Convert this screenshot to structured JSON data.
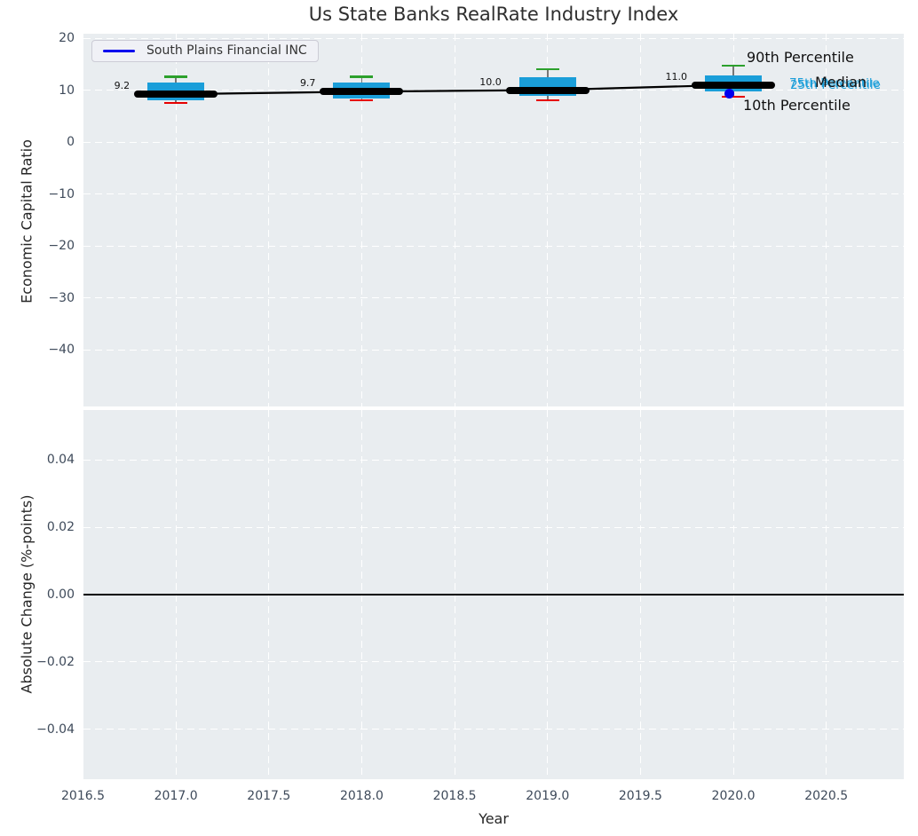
{
  "figure": {
    "title": "Us State Banks RealRate Industry Index"
  },
  "legend": {
    "label": "South Plains Financial INC"
  },
  "chart_data": {
    "type": "boxplot",
    "title": "Us State Banks RealRate Industry Index",
    "x": {
      "label": "Year",
      "tick_labels": [
        "2016.5",
        "2017.0",
        "2017.5",
        "2018.0",
        "2018.5",
        "2019.0",
        "2019.5",
        "2020.0",
        "2020.5"
      ],
      "tick_values": [
        2016.5,
        2017.0,
        2017.5,
        2018.0,
        2018.5,
        2019.0,
        2019.5,
        2020.0,
        2020.5
      ],
      "range": [
        2016.5,
        2020.92
      ]
    },
    "top_panel": {
      "ylabel": "Economic Capital Ratio",
      "y_tick_labels": [
        "20",
        "10",
        "0",
        "−10",
        "−20",
        "−30",
        "−40"
      ],
      "y_tick_values": [
        20,
        10,
        0,
        -10,
        -20,
        -30,
        -40
      ],
      "ylim": [
        -50.9,
        20.9
      ],
      "grid": true,
      "legend_position": "upper left",
      "boxes": [
        {
          "year": 2017,
          "median_label": "9.2",
          "median": 9.2,
          "q1": 8.0,
          "q3": 11.5,
          "p10": 7.5,
          "p90": 12.6
        },
        {
          "year": 2018,
          "median_label": "9.7",
          "median": 9.7,
          "q1": 8.4,
          "q3": 11.4,
          "p10": 8.0,
          "p90": 12.6
        },
        {
          "year": 2019,
          "median_label": "10.0",
          "median": 10.0,
          "q1": 8.9,
          "q3": 12.5,
          "p10": 8.0,
          "p90": 14.0
        },
        {
          "year": 2020,
          "median_label": "11.0",
          "median": 11.0,
          "q1": 9.8,
          "q3": 12.8,
          "p10": 8.7,
          "p90": 14.7
        }
      ],
      "median_line": {
        "x": [
          2017,
          2018,
          2019,
          2020
        ],
        "y": [
          9.2,
          9.7,
          10.0,
          11.0
        ]
      },
      "company_series": {
        "name": "South Plains Financial INC",
        "points": [
          {
            "x": 2020,
            "y": 9.4
          }
        ]
      },
      "percentile_labels": {
        "p90": "90th Percentile",
        "median": "Median",
        "p75": "75th Percentile",
        "p25": "25th Percentile",
        "p10": "10th Percentile"
      }
    },
    "bottom_panel": {
      "ylabel": "Absolute Change (%-points)",
      "y_tick_labels": [
        "0.04",
        "0.02",
        "0.00",
        "−0.02",
        "−0.04"
      ],
      "y_tick_values": [
        0.04,
        0.02,
        0,
        -0.02,
        -0.04
      ],
      "zero_line_y": 0,
      "series": []
    },
    "colors": {
      "box_fill": "#1a9ed9",
      "p90_cap": "#2ca02c",
      "p10_cap": "#e60000",
      "median_line": "#000000",
      "company_marker": "#0000ee",
      "whisker": "#777777",
      "plot_background": "#e9edf0",
      "gridline": "#ffffff",
      "tick_text": "#3e4a5a"
    }
  }
}
